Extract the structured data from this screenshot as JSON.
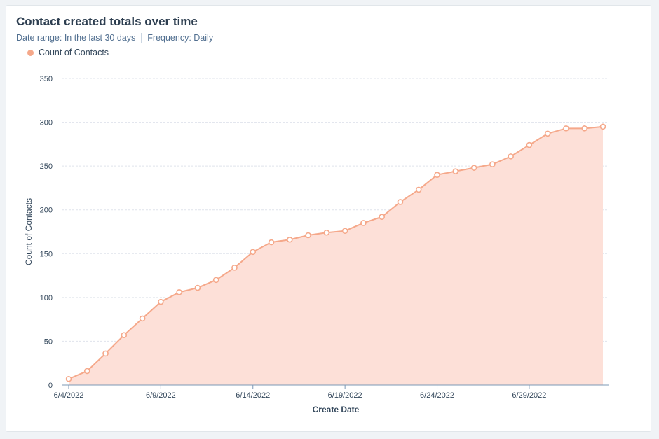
{
  "card": {
    "title": "Contact created totals over time",
    "date_range_label": "Date range:",
    "date_range_value": "In the last 30 days",
    "frequency_label": "Frequency:",
    "frequency_value": "Daily"
  },
  "colors": {
    "line": "#f5a88a",
    "fill": "#fde0d8",
    "point_fill": "#ffffff",
    "grid": "#dfe3eb",
    "axis": "#7c98b6"
  },
  "chart_data": {
    "type": "area",
    "xlabel": "Create Date",
    "ylabel": "Count of Contacts",
    "ylim": [
      0,
      350
    ],
    "yticks": [
      0,
      50,
      100,
      150,
      200,
      250,
      300,
      350
    ],
    "xtick_labels": [
      "6/4/2022",
      "6/9/2022",
      "6/14/2022",
      "6/19/2022",
      "6/24/2022",
      "6/29/2022"
    ],
    "grid": true,
    "legend": "top-left",
    "series": [
      {
        "name": "Count of Contacts",
        "x": [
          "6/4/2022",
          "6/5/2022",
          "6/6/2022",
          "6/7/2022",
          "6/8/2022",
          "6/9/2022",
          "6/10/2022",
          "6/11/2022",
          "6/12/2022",
          "6/13/2022",
          "6/14/2022",
          "6/15/2022",
          "6/16/2022",
          "6/17/2022",
          "6/18/2022",
          "6/19/2022",
          "6/20/2022",
          "6/21/2022",
          "6/22/2022",
          "6/23/2022",
          "6/24/2022",
          "6/25/2022",
          "6/26/2022",
          "6/27/2022",
          "6/28/2022",
          "6/29/2022",
          "6/30/2022",
          "7/1/2022",
          "7/2/2022",
          "7/3/2022"
        ],
        "values": [
          7,
          16,
          36,
          57,
          76,
          95,
          106,
          111,
          120,
          134,
          152,
          163,
          166,
          171,
          174,
          176,
          185,
          192,
          209,
          223,
          240,
          244,
          248,
          252,
          261,
          274,
          287,
          293,
          293,
          295
        ]
      }
    ]
  }
}
